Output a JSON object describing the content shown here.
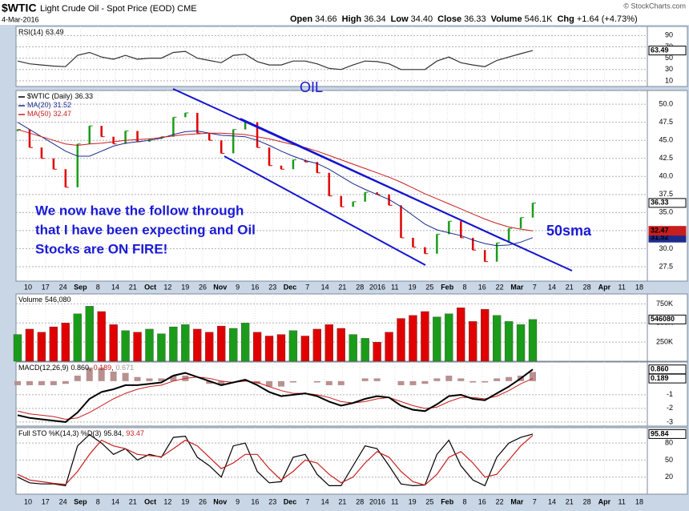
{
  "header": {
    "symbol": "$WTIC",
    "name": "Light Crude Oil - Spot Price (EOD) CME",
    "date": "4-Mar-2016",
    "credit": "© StockCharts.com",
    "quote": [
      {
        "label": "Open",
        "value": "34.66"
      },
      {
        "label": "High",
        "value": "36.34"
      },
      {
        "label": "Low",
        "value": "34.40"
      },
      {
        "label": "Close",
        "value": "36.33"
      },
      {
        "label": "Volume",
        "value": "546.1K"
      },
      {
        "label": "Chg",
        "value": "+1.64 (+4.73%)"
      }
    ]
  },
  "annotations": {
    "oil": "OIL",
    "note": [
      "We now have the follow through",
      "that I have been expecting and Oil",
      "Stocks are ON FIRE!"
    ],
    "sma": "50sma"
  },
  "x_labels": [
    "10",
    "17",
    "24",
    "Sep",
    "8",
    "14",
    "21",
    "Oct",
    "12",
    "19",
    "26",
    "Nov",
    "9",
    "16",
    "23",
    "Dec",
    "7",
    "14",
    "21",
    "28",
    "2016",
    "11",
    "19",
    "25",
    "Feb",
    "8",
    "16",
    "22",
    "Mar",
    "7",
    "14",
    "21",
    "28",
    "Apr",
    "11",
    "18"
  ],
  "chart_data": [
    {
      "type": "line",
      "title": "RSI(14)",
      "ylim": [
        0,
        106
      ],
      "yticks": [
        90,
        70,
        50,
        30,
        10
      ],
      "grid": true,
      "series": [
        {
          "color": "#333333",
          "badge": true,
          "values": [
            45,
            40,
            38,
            36,
            35,
            55,
            60,
            52,
            48,
            55,
            48,
            50,
            50,
            60,
            62,
            50,
            46,
            42,
            55,
            57,
            44,
            38,
            38,
            45,
            45,
            40,
            32,
            30,
            38,
            45,
            44,
            40,
            30,
            30,
            30,
            45,
            52,
            42,
            38,
            35,
            46,
            52,
            58,
            63.49
          ]
        }
      ]
    },
    {
      "type": "price",
      "ylim": [
        25.5,
        51.9
      ],
      "grid": true,
      "up_color": "#1a9c1a",
      "down_color": "#e00000",
      "yticks": [
        {
          "value": 50,
          "label": "50.0"
        },
        47.5,
        {
          "value": 45,
          "label": "45.0"
        },
        42.5,
        {
          "value": 40,
          "label": "40.0"
        },
        37.5,
        {
          "value": 35,
          "label": "35.0"
        },
        32.5,
        {
          "value": 30,
          "label": "30.0"
        },
        27.5
      ],
      "series": [
        {
          "name": "$WTIC (Daily)",
          "color": "#000000",
          "badge": true,
          "values": [
            46.5,
            44.0,
            42.5,
            41.0,
            38.5,
            44.5,
            47.0,
            45.5,
            44.5,
            46.3,
            44.8,
            45.2,
            45.5,
            48.2,
            48.8,
            46.0,
            45.0,
            43.2,
            46.5,
            47.5,
            44.0,
            41.5,
            41.0,
            42.3,
            42.0,
            40.5,
            37.3,
            35.8,
            36.5,
            37.8,
            37.5,
            36.0,
            31.5,
            30.2,
            29.3,
            32.0,
            33.8,
            31.5,
            29.8,
            28.2,
            30.8,
            32.8,
            34.3,
            36.33
          ]
        },
        {
          "name": "MA(20)",
          "color": "#1c2a8c",
          "badge": true,
          "values": [
            47.5,
            46.5,
            45.5,
            44.5,
            43.5,
            42.8,
            42.8,
            43.5,
            44.2,
            44.6,
            44.8,
            45.0,
            45.3,
            45.8,
            46.2,
            46.3,
            46.0,
            45.7,
            45.6,
            45.5,
            45.0,
            44.3,
            43.5,
            42.8,
            42.2,
            41.8,
            41.0,
            40.0,
            39.0,
            38.2,
            37.5,
            36.8,
            35.8,
            34.6,
            33.4,
            32.6,
            32.2,
            31.8,
            31.2,
            30.7,
            30.4,
            30.5,
            30.9,
            31.52
          ]
        },
        {
          "name": "MA(50)",
          "color": "#c81e1e",
          "badge": true,
          "values": [
            46.5,
            46.0,
            45.5,
            45.0,
            44.5,
            44.3,
            44.5,
            44.6,
            44.8,
            45.0,
            45.1,
            45.2,
            45.4,
            45.6,
            45.8,
            45.9,
            46.0,
            46.0,
            45.9,
            45.8,
            45.5,
            45.2,
            44.8,
            44.4,
            44.0,
            43.5,
            42.9,
            42.3,
            41.7,
            41.1,
            40.5,
            39.9,
            39.2,
            38.4,
            37.6,
            36.9,
            36.2,
            35.5,
            34.8,
            34.1,
            33.5,
            33.0,
            32.7,
            32.47
          ]
        }
      ]
    },
    {
      "type": "bar",
      "title": "Volume",
      "ylim": [
        0,
        880000
      ],
      "grid": true,
      "yticks": [
        {
          "value": 750000,
          "label": "750K"
        },
        {
          "value": 500000,
          "label": "500K"
        },
        {
          "value": 250000,
          "label": "250K"
        }
      ],
      "series": [
        {
          "color": "#1a9c1a",
          "badge": true,
          "last_label": "546,080",
          "values": [
            350000,
            420000,
            380000,
            450000,
            500000,
            620000,
            720000,
            650000,
            480000,
            400000,
            380000,
            420000,
            360000,
            450000,
            480000,
            420000,
            380000,
            460000,
            430000,
            500000,
            380000,
            330000,
            350000,
            400000,
            330000,
            420000,
            480000,
            430000,
            350000,
            300000,
            250000,
            380000,
            560000,
            600000,
            650000,
            580000,
            620000,
            700000,
            520000,
            680000,
            600000,
            520000,
            480000,
            546080
          ]
        }
      ]
    },
    {
      "type": "macd",
      "title": "MACD(12,26,9)",
      "ylim": [
        -3.3,
        1.4
      ],
      "yticks": [
        -1,
        -2,
        -3
      ],
      "grid": true,
      "series": [
        {
          "color": "#000000",
          "badge": true,
          "last_label": "0.860",
          "values": [
            -2.5,
            -2.7,
            -2.8,
            -2.9,
            -3.0,
            -2.3,
            -1.3,
            -0.8,
            -0.6,
            -0.3,
            -0.3,
            -0.2,
            -0.1,
            0.4,
            0.6,
            0.3,
            0.0,
            -0.3,
            -0.1,
            0.1,
            -0.3,
            -0.8,
            -1.1,
            -1.0,
            -0.9,
            -1.1,
            -1.5,
            -1.8,
            -1.6,
            -1.3,
            -1.1,
            -1.2,
            -1.8,
            -2.1,
            -2.2,
            -1.7,
            -1.1,
            -1.0,
            -1.3,
            -1.4,
            -0.9,
            -0.4,
            0.2,
            0.86
          ]
        },
        {
          "color": "#c81e1e",
          "badge": true,
          "values": [
            -2.2,
            -2.4,
            -2.5,
            -2.6,
            -2.8,
            -2.7,
            -2.3,
            -1.8,
            -1.3,
            -0.9,
            -0.6,
            -0.4,
            -0.3,
            0.0,
            0.2,
            0.3,
            0.2,
            0.0,
            -0.1,
            0.0,
            -0.1,
            -0.4,
            -0.7,
            -0.9,
            -0.9,
            -1.0,
            -1.2,
            -1.5,
            -1.6,
            -1.5,
            -1.3,
            -1.2,
            -1.5,
            -1.8,
            -2.0,
            -1.9,
            -1.5,
            -1.2,
            -1.2,
            -1.3,
            -1.1,
            -0.7,
            -0.2,
            0.189
          ]
        },
        {
          "color": "#b89090",
          "values": [
            -0.3,
            -0.3,
            -0.3,
            -0.3,
            -0.2,
            0.4,
            1.0,
            1.0,
            0.7,
            0.6,
            0.3,
            0.2,
            0.2,
            0.4,
            0.4,
            0.0,
            -0.2,
            -0.3,
            0.0,
            0.1,
            -0.2,
            -0.4,
            -0.4,
            -0.1,
            0.0,
            -0.1,
            -0.3,
            -0.3,
            0.0,
            0.2,
            0.2,
            0.0,
            -0.3,
            -0.3,
            -0.2,
            0.2,
            0.4,
            0.2,
            -0.1,
            -0.1,
            0.2,
            0.3,
            0.4,
            0.671
          ]
        }
      ]
    },
    {
      "type": "line",
      "title": "Full STO %K(14,3) %D(3)",
      "ylim": [
        -10,
        107
      ],
      "yticks": [
        80,
        50,
        20
      ],
      "grid": true,
      "series": [
        {
          "color": "#000000",
          "badge": true,
          "values": [
            20,
            10,
            8,
            8,
            5,
            75,
            95,
            80,
            60,
            70,
            50,
            60,
            55,
            90,
            92,
            55,
            40,
            20,
            75,
            80,
            30,
            10,
            12,
            55,
            60,
            25,
            5,
            5,
            40,
            75,
            70,
            40,
            8,
            5,
            6,
            60,
            85,
            40,
            15,
            5,
            55,
            80,
            90,
            95.84
          ]
        },
        {
          "color": "#c81e1e",
          "values": [
            25,
            15,
            12,
            9,
            7,
            30,
            60,
            85,
            75,
            70,
            60,
            58,
            56,
            70,
            85,
            75,
            55,
            35,
            45,
            60,
            60,
            35,
            15,
            30,
            50,
            45,
            25,
            10,
            20,
            45,
            65,
            55,
            30,
            12,
            6,
            25,
            55,
            65,
            45,
            20,
            25,
            50,
            75,
            93.47
          ]
        }
      ]
    }
  ]
}
